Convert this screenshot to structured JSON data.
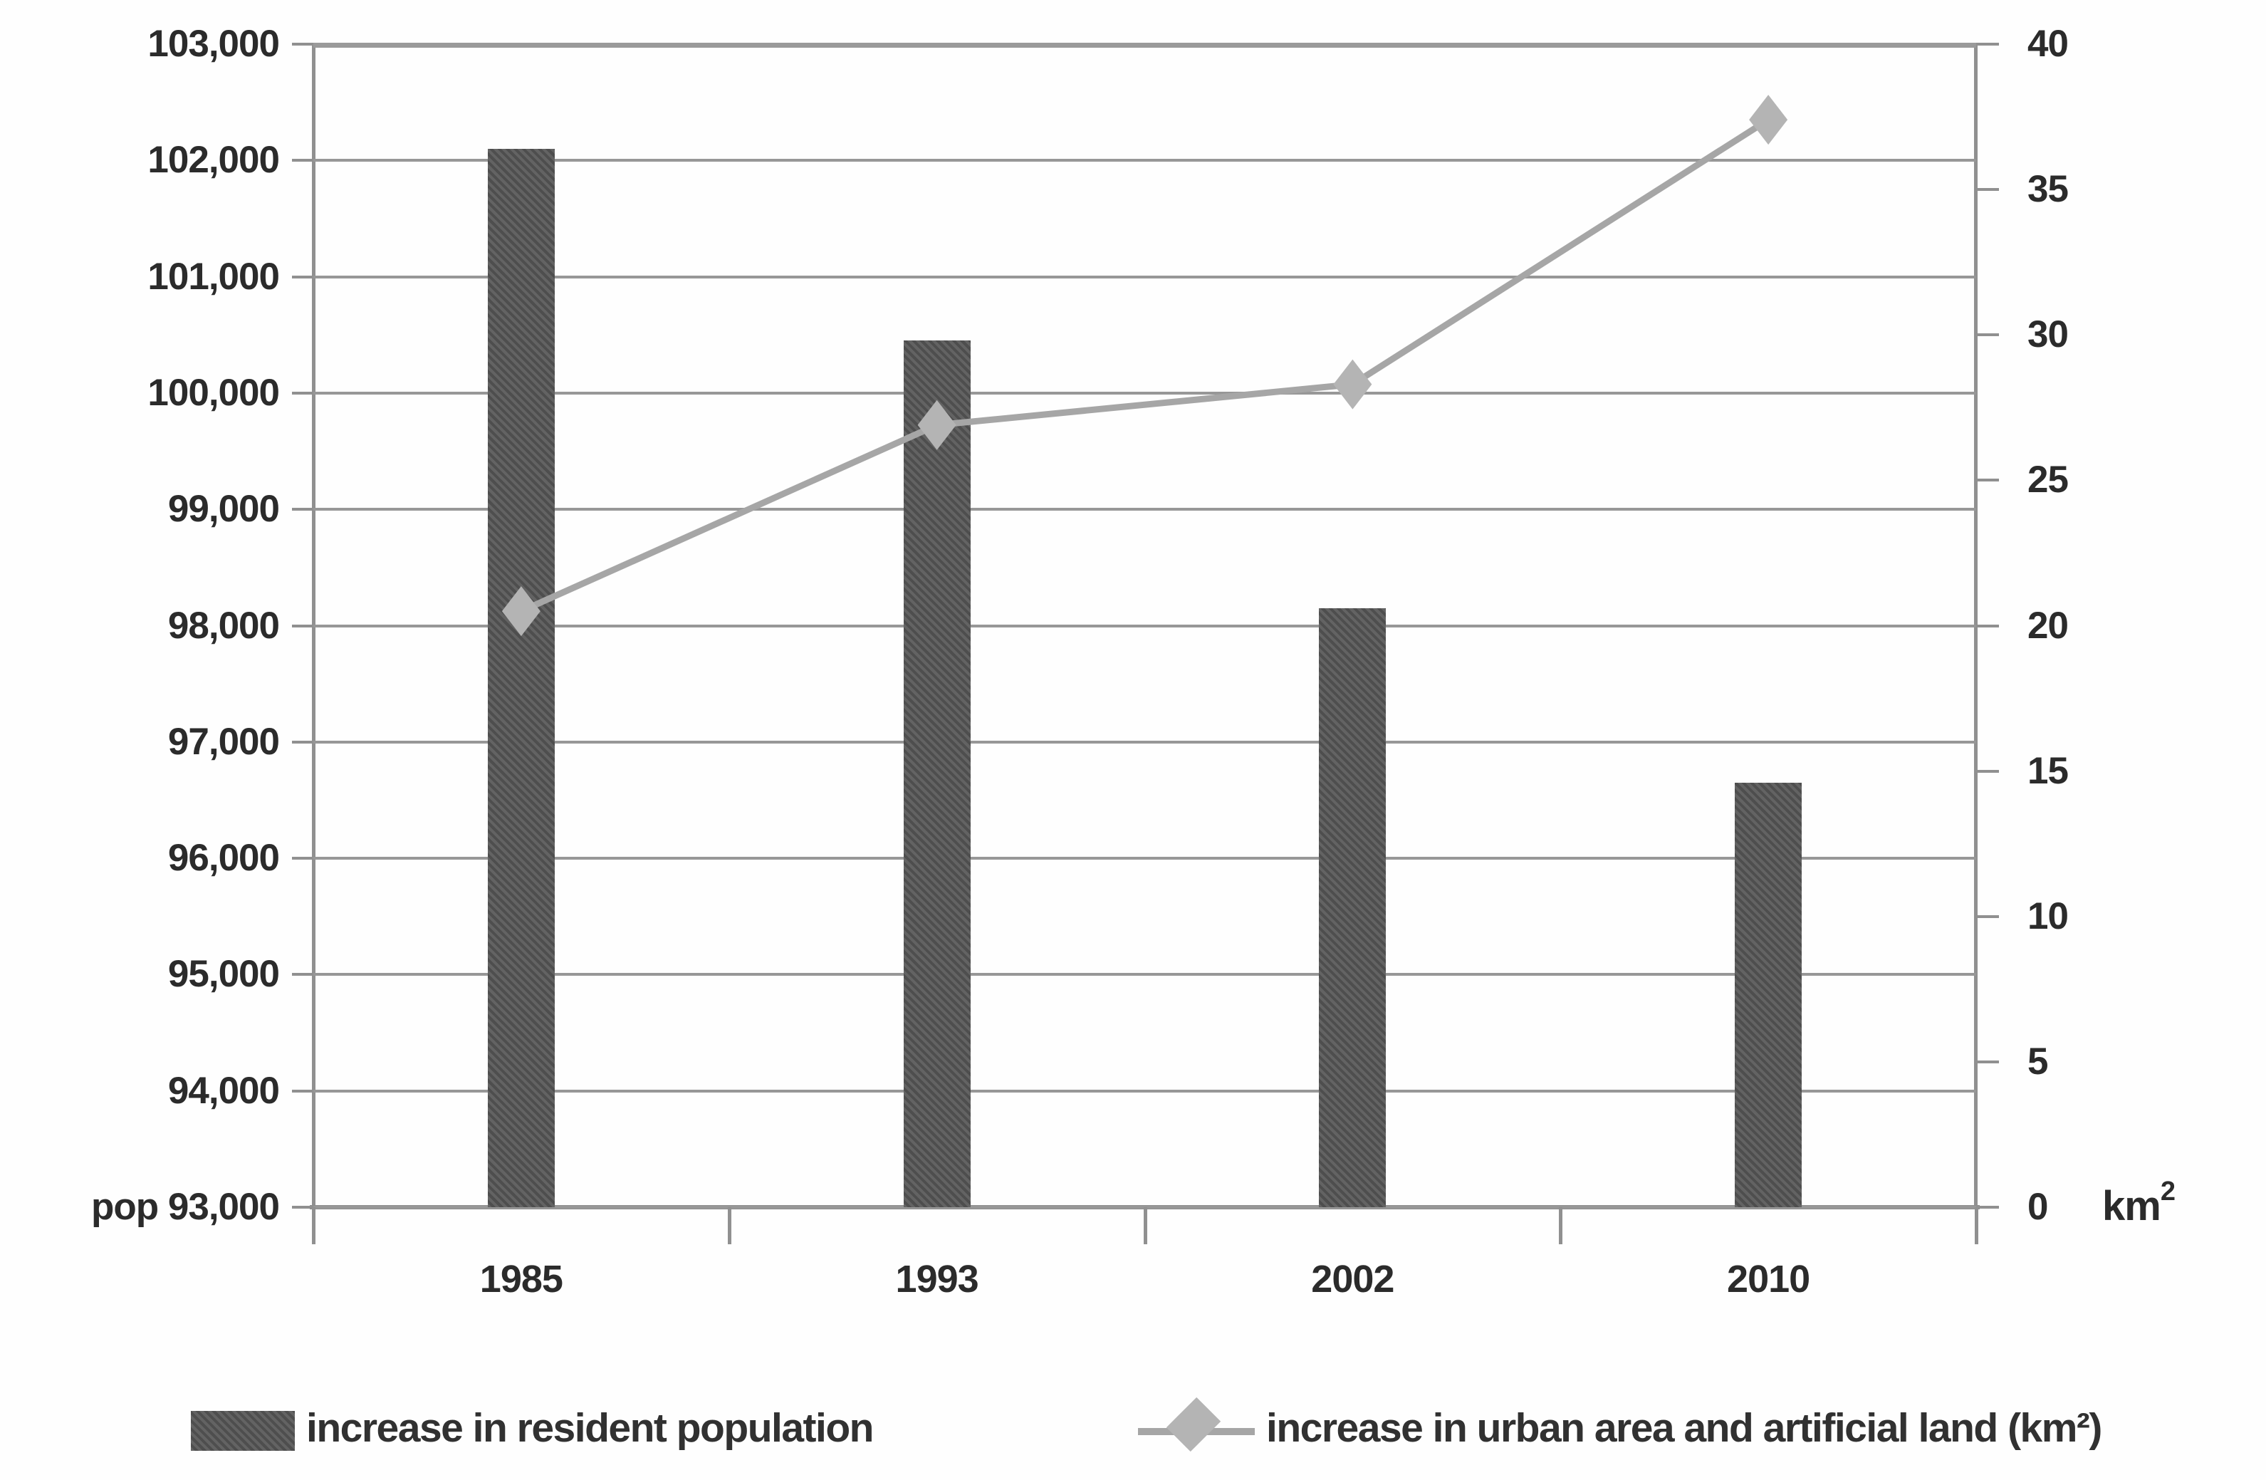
{
  "chart_data": {
    "type": "combo-bar-line",
    "categories": [
      "1985",
      "1993",
      "2002",
      "2010"
    ],
    "series": [
      {
        "name": "increase in resident population",
        "type": "bar",
        "axis": "left",
        "color": "#575757",
        "values": [
          102100,
          100450,
          98150,
          96650
        ]
      },
      {
        "name": "increase in urban area and artificial land (km²)",
        "type": "line",
        "axis": "right",
        "color": "#a6a6a6",
        "marker": "diamond",
        "marker_color": "#b4b4b4",
        "values": [
          20.5,
          26.9,
          28.3,
          37.4
        ]
      }
    ],
    "left_axis": {
      "min": 93000,
      "max": 103000,
      "step": 1000,
      "tick_labels": [
        "103,000",
        "102,000",
        "101,000",
        "100,000",
        "99,000",
        "98,000",
        "97,000",
        "96,000",
        "95,000",
        "94,000",
        "pop 93,000"
      ]
    },
    "right_axis": {
      "min": 0,
      "max": 40,
      "step": 5,
      "tick_labels": [
        "40",
        "35",
        "30",
        "25",
        "20",
        "15",
        "10",
        "5",
        "0"
      ],
      "unit_base": "km",
      "unit_sup": "2"
    },
    "grid": true,
    "legend_position": "bottom"
  }
}
